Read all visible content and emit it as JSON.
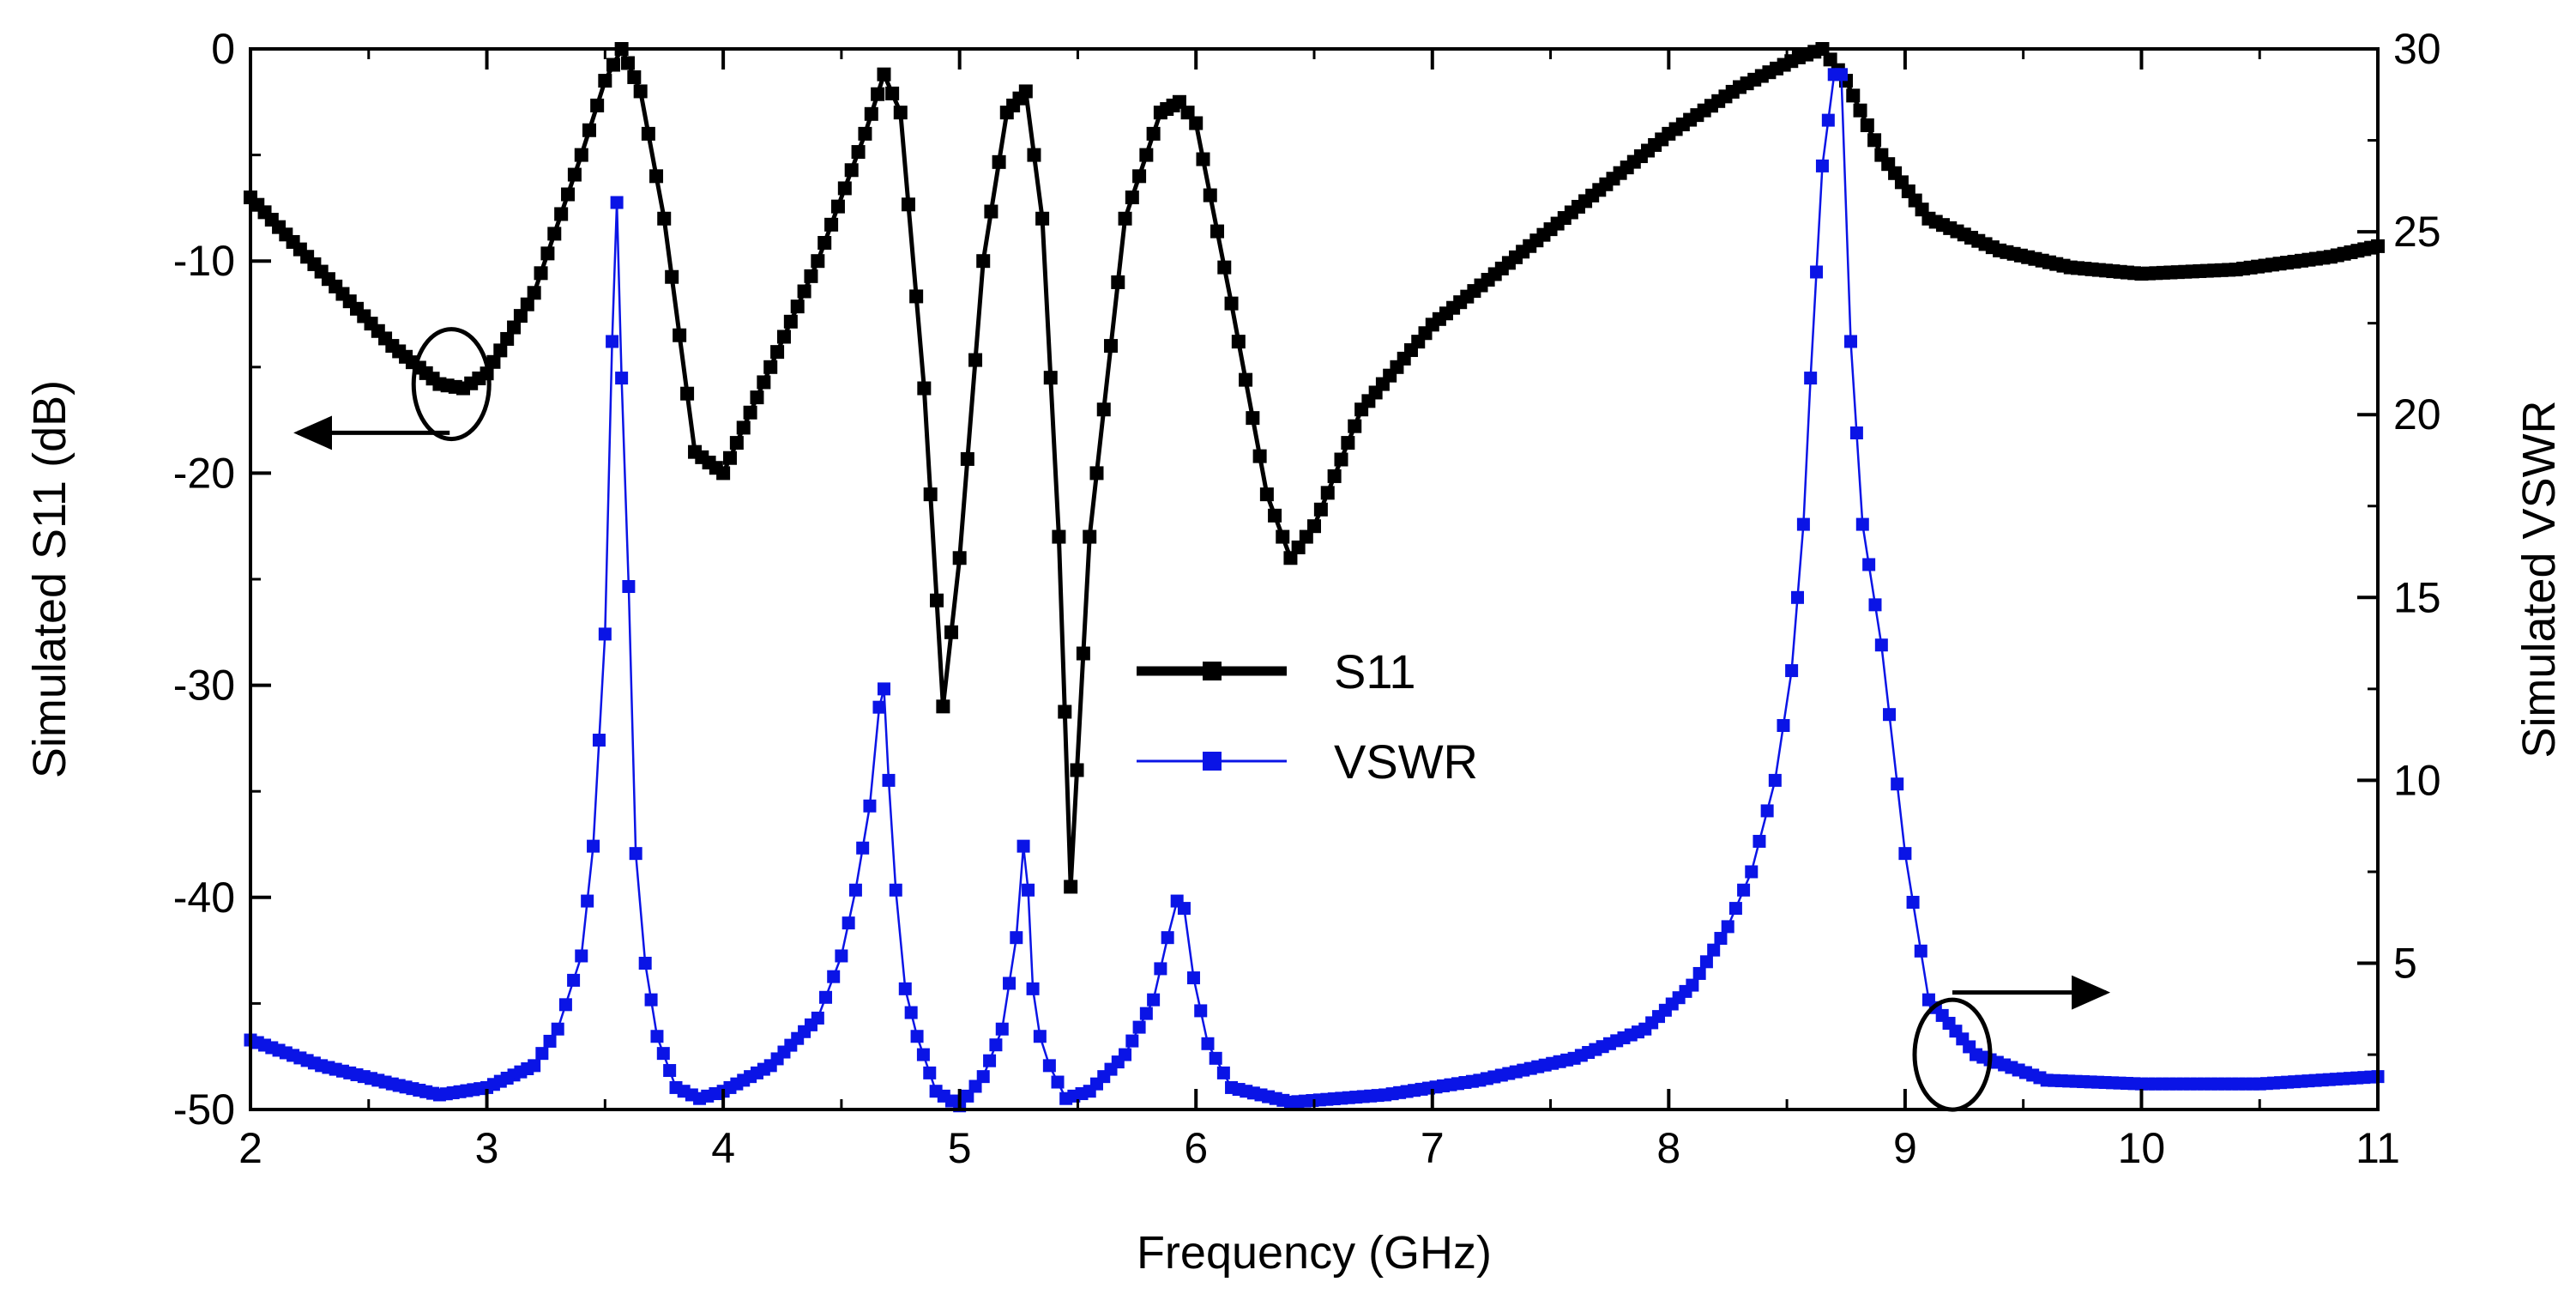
{
  "chart_data": {
    "type": "line",
    "title": "",
    "xlabel": "Frequency (GHz)",
    "ylabel_left": "Simulated S11 (dB)",
    "ylabel_right": "Simulated VSWR",
    "xlim": [
      2,
      11
    ],
    "ylim_left": [
      -50,
      0
    ],
    "ylim_right": [
      1,
      30
    ],
    "x_ticks": [
      "2",
      "3",
      "4",
      "5",
      "6",
      "7",
      "8",
      "9",
      "10",
      "11"
    ],
    "y_left_ticks": [
      "0",
      "-10",
      "-20",
      "-30",
      "-40",
      "-50"
    ],
    "y_right_ticks": [
      "30",
      "25",
      "20",
      "15",
      "10",
      "5"
    ],
    "grid": false,
    "legend_position": "center",
    "series": [
      {
        "name": "S11",
        "axis": "left",
        "color": "#000000",
        "marker": "square",
        "x": [
          2.0,
          2.3,
          2.6,
          2.8,
          2.9,
          3.0,
          3.2,
          3.4,
          3.5,
          3.57,
          3.65,
          3.75,
          3.88,
          4.0,
          4.2,
          4.4,
          4.6,
          4.68,
          4.75,
          4.85,
          4.93,
          5.0,
          5.1,
          5.2,
          5.28,
          5.35,
          5.42,
          5.47,
          5.55,
          5.7,
          5.85,
          5.93,
          6.0,
          6.15,
          6.3,
          6.4,
          6.5,
          6.7,
          7.0,
          7.5,
          8.0,
          8.3,
          8.55,
          8.65,
          8.75,
          8.9,
          9.1,
          9.4,
          9.7,
          10.0,
          10.4,
          10.8,
          11.0
        ],
        "y": [
          -7,
          -10.5,
          -14,
          -15.8,
          -16,
          -15.3,
          -11.5,
          -5,
          -1.5,
          0,
          -2,
          -8,
          -19,
          -20,
          -15,
          -10,
          -4,
          -1.2,
          -3,
          -16,
          -31,
          -24,
          -10,
          -3,
          -2,
          -8,
          -23,
          -39.5,
          -23,
          -8,
          -3,
          -2.5,
          -3.5,
          -12,
          -21,
          -24,
          -22.5,
          -17,
          -13,
          -8.5,
          -4,
          -1.8,
          -0.4,
          0,
          -1.5,
          -5,
          -8,
          -9.5,
          -10.3,
          -10.6,
          -10.4,
          -9.8,
          -9.3
        ]
      },
      {
        "name": "VSWR",
        "axis": "right",
        "color": "#0a14e6",
        "marker": "square",
        "x": [
          2.0,
          2.3,
          2.6,
          2.8,
          3.0,
          3.2,
          3.3,
          3.4,
          3.45,
          3.5,
          3.53,
          3.55,
          3.57,
          3.6,
          3.63,
          3.67,
          3.72,
          3.8,
          3.9,
          4.0,
          4.2,
          4.4,
          4.5,
          4.56,
          4.62,
          4.66,
          4.68,
          4.7,
          4.73,
          4.77,
          4.82,
          4.9,
          5.0,
          5.1,
          5.18,
          5.24,
          5.27,
          5.29,
          5.31,
          5.34,
          5.38,
          5.45,
          5.55,
          5.7,
          5.82,
          5.88,
          5.92,
          5.95,
          5.99,
          6.05,
          6.15,
          6.4,
          6.8,
          7.2,
          7.6,
          7.9,
          8.1,
          8.25,
          8.35,
          8.45,
          8.52,
          8.57,
          8.6,
          8.65,
          8.7,
          8.73,
          8.77,
          8.82,
          8.9,
          9.0,
          9.1,
          9.3,
          9.6,
          10.0,
          10.5,
          11.0
        ],
        "y": [
          2.9,
          2.2,
          1.7,
          1.4,
          1.6,
          2.2,
          3.2,
          5.2,
          8.2,
          14,
          22,
          25.8,
          21,
          15.3,
          8,
          5,
          3,
          1.6,
          1.3,
          1.5,
          2.2,
          3.5,
          5.2,
          7,
          9.3,
          12,
          12.5,
          10,
          7,
          4.3,
          3,
          1.5,
          1.1,
          1.9,
          3.2,
          5.7,
          8.2,
          7,
          4.3,
          3,
          2.2,
          1.3,
          1.5,
          2.5,
          4,
          5.7,
          6.7,
          6.5,
          4.6,
          2.8,
          1.6,
          1.2,
          1.4,
          1.8,
          2.4,
          3.2,
          4.4,
          6,
          7.5,
          10,
          13,
          17,
          21,
          26.8,
          29.3,
          29.3,
          22,
          17,
          13.7,
          8,
          4,
          2.5,
          1.8,
          1.7,
          1.7,
          1.9
        ]
      }
    ],
    "annotations": [
      "ellipse with arrow pointing left to S11 axis",
      "ellipse with arrow pointing right to VSWR axis"
    ]
  }
}
